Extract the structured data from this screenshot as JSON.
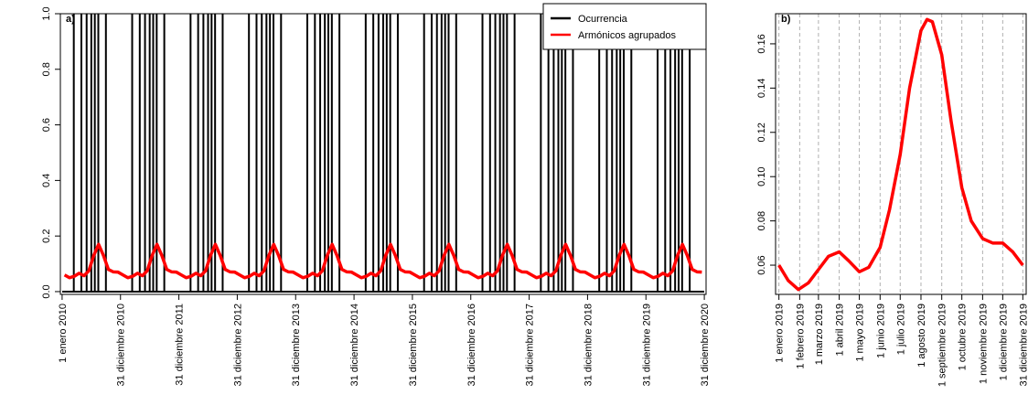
{
  "chart_data": [
    {
      "type": "line",
      "title": "a)",
      "xlim": [
        2009.97,
        2021.03
      ],
      "ylim": [
        -0.01,
        1.0
      ],
      "xticks": [
        {
          "value": 2010,
          "label": "1 enero 2010"
        },
        {
          "value": 2011,
          "label": "31 diciembre 2010"
        },
        {
          "value": 2012,
          "label": "31 diciembre 2011"
        },
        {
          "value": 2013,
          "label": "31 diciembre 2012"
        },
        {
          "value": 2014,
          "label": "31 diciembre 2013"
        },
        {
          "value": 2015,
          "label": "31 diciembre 2014"
        },
        {
          "value": 2016,
          "label": "31 diciembre 2015"
        },
        {
          "value": 2017,
          "label": "31 diciembre 2016"
        },
        {
          "value": 2018,
          "label": "31 diciembre 2017"
        },
        {
          "value": 2019,
          "label": "31 diciembre 2018"
        },
        {
          "value": 2020,
          "label": "31 diciembre 2019"
        },
        {
          "value": 2021,
          "label": "31 diciembre 2020"
        }
      ],
      "yticks": [
        {
          "value": 0,
          "label": "0.0"
        },
        0.2,
        0.4,
        0.6,
        0.8,
        {
          "value": 1,
          "label": "1.0"
        }
      ],
      "legend": "top right",
      "series": [
        {
          "name": "Ocurrencia",
          "color": "#000000",
          "type": "spike",
          "x": [
            2010.2,
            2010.33,
            2010.42,
            2010.5,
            2010.56,
            2010.62,
            2010.75,
            2011.2,
            2011.33,
            2011.42,
            2011.5,
            2011.56,
            2011.62,
            2011.75,
            2012.2,
            2012.33,
            2012.42,
            2012.5,
            2012.56,
            2012.62,
            2012.75,
            2013.2,
            2013.33,
            2013.42,
            2013.5,
            2013.56,
            2013.62,
            2013.75,
            2014.2,
            2014.33,
            2014.42,
            2014.5,
            2014.56,
            2014.62,
            2014.75,
            2015.2,
            2015.33,
            2015.42,
            2015.5,
            2015.56,
            2015.62,
            2015.75,
            2016.2,
            2016.33,
            2016.42,
            2016.5,
            2016.56,
            2016.62,
            2016.75,
            2017.2,
            2017.33,
            2017.42,
            2017.5,
            2017.56,
            2017.62,
            2017.75,
            2018.2,
            2018.33,
            2018.42,
            2018.5,
            2018.56,
            2018.62,
            2018.75,
            2019.2,
            2019.33,
            2019.42,
            2019.5,
            2019.56,
            2019.62,
            2019.75,
            2020.2,
            2020.33,
            2020.42,
            2020.5,
            2020.56,
            2020.62,
            2020.75
          ],
          "values": [
            1,
            1,
            1,
            1,
            1,
            1,
            1,
            1,
            1,
            1,
            1,
            1,
            1,
            1,
            1,
            1,
            1,
            1,
            1,
            1,
            1,
            1,
            1,
            1,
            1,
            1,
            1,
            1,
            1,
            1,
            1,
            1,
            1,
            1,
            1,
            1,
            1,
            1,
            1,
            1,
            1,
            1,
            1,
            1,
            1,
            1,
            1,
            1,
            1,
            1,
            1,
            1,
            1,
            1,
            1,
            1,
            1,
            1,
            1,
            1,
            1,
            1,
            1,
            1,
            1,
            1,
            1,
            1,
            1,
            1,
            1,
            1,
            1,
            1,
            1,
            1,
            1
          ]
        },
        {
          "name": "Armónicos agrupados",
          "color": "#ff0000",
          "type": "line",
          "x": [
            2010.042,
            2010.125,
            2010.208,
            2010.292,
            2010.375,
            2010.458,
            2010.542,
            2010.625,
            2010.708,
            2010.792,
            2010.875,
            2010.958,
            2011.042,
            2011.125,
            2011.208,
            2011.292,
            2011.375,
            2011.458,
            2011.542,
            2011.625,
            2011.708,
            2011.792,
            2011.875,
            2011.958,
            2012.042,
            2012.125,
            2012.208,
            2012.292,
            2012.375,
            2012.458,
            2012.542,
            2012.625,
            2012.708,
            2012.792,
            2012.875,
            2012.958,
            2013.042,
            2013.125,
            2013.208,
            2013.292,
            2013.375,
            2013.458,
            2013.542,
            2013.625,
            2013.708,
            2013.792,
            2013.875,
            2013.958,
            2014.042,
            2014.125,
            2014.208,
            2014.292,
            2014.375,
            2014.458,
            2014.542,
            2014.625,
            2014.708,
            2014.792,
            2014.875,
            2014.958,
            2015.042,
            2015.125,
            2015.208,
            2015.292,
            2015.375,
            2015.458,
            2015.542,
            2015.625,
            2015.708,
            2015.792,
            2015.875,
            2015.958,
            2016.042,
            2016.125,
            2016.208,
            2016.292,
            2016.375,
            2016.458,
            2016.542,
            2016.625,
            2016.708,
            2016.792,
            2016.875,
            2016.958,
            2017.042,
            2017.125,
            2017.208,
            2017.292,
            2017.375,
            2017.458,
            2017.542,
            2017.625,
            2017.708,
            2017.792,
            2017.875,
            2017.958,
            2018.042,
            2018.125,
            2018.208,
            2018.292,
            2018.375,
            2018.458,
            2018.542,
            2018.625,
            2018.708,
            2018.792,
            2018.875,
            2018.958,
            2019.042,
            2019.125,
            2019.208,
            2019.292,
            2019.375,
            2019.458,
            2019.542,
            2019.625,
            2019.708,
            2019.792,
            2019.875,
            2019.958,
            2020.042,
            2020.125,
            2020.208,
            2020.292,
            2020.375,
            2020.458,
            2020.542,
            2020.625,
            2020.708,
            2020.792,
            2020.875,
            2020.958
          ],
          "values": [
            0.06,
            0.05,
            0.055,
            0.066,
            0.057,
            0.075,
            0.13,
            0.17,
            0.13,
            0.08,
            0.071,
            0.07,
            0.06,
            0.05,
            0.055,
            0.066,
            0.057,
            0.075,
            0.13,
            0.17,
            0.13,
            0.08,
            0.071,
            0.07,
            0.06,
            0.05,
            0.055,
            0.066,
            0.057,
            0.075,
            0.13,
            0.17,
            0.13,
            0.08,
            0.071,
            0.07,
            0.06,
            0.05,
            0.055,
            0.066,
            0.057,
            0.075,
            0.13,
            0.17,
            0.13,
            0.08,
            0.071,
            0.07,
            0.06,
            0.05,
            0.055,
            0.066,
            0.057,
            0.075,
            0.13,
            0.17,
            0.13,
            0.08,
            0.071,
            0.07,
            0.06,
            0.05,
            0.055,
            0.066,
            0.057,
            0.075,
            0.13,
            0.17,
            0.13,
            0.08,
            0.071,
            0.07,
            0.06,
            0.05,
            0.055,
            0.066,
            0.057,
            0.075,
            0.13,
            0.17,
            0.13,
            0.08,
            0.071,
            0.07,
            0.06,
            0.05,
            0.055,
            0.066,
            0.057,
            0.075,
            0.13,
            0.17,
            0.13,
            0.08,
            0.071,
            0.07,
            0.06,
            0.05,
            0.055,
            0.066,
            0.057,
            0.075,
            0.13,
            0.17,
            0.13,
            0.08,
            0.071,
            0.07,
            0.06,
            0.05,
            0.055,
            0.066,
            0.057,
            0.075,
            0.13,
            0.17,
            0.13,
            0.08,
            0.071,
            0.07,
            0.06,
            0.05,
            0.055,
            0.066,
            0.057,
            0.075,
            0.13,
            0.17,
            0.13,
            0.08,
            0.071,
            0.07
          ]
        }
      ]
    },
    {
      "type": "line",
      "title": "b)",
      "xlim": [
        -4,
        370
      ],
      "ylim": [
        0.0468,
        0.1736
      ],
      "xgrid": true,
      "xticks": [
        {
          "value": 1,
          "label": "1 enero 2019"
        },
        {
          "value": 32,
          "label": "1 febrero 2019"
        },
        {
          "value": 60,
          "label": "1 marzo 2019"
        },
        {
          "value": 91,
          "label": "1 abril 2019"
        },
        {
          "value": 121,
          "label": "1 mayo 2019"
        },
        {
          "value": 152,
          "label": "1 junio 2019"
        },
        {
          "value": 182,
          "label": "1 julio 2019"
        },
        {
          "value": 213,
          "label": "1 agosto 2019"
        },
        {
          "value": 244,
          "label": "1 septiembre 2019"
        },
        {
          "value": 274,
          "label": "1 octubre 2019"
        },
        {
          "value": 305,
          "label": "1 noviembre 2019"
        },
        {
          "value": 335,
          "label": "1 diciembre 2019"
        },
        {
          "value": 365,
          "label": "31 diciembre 2019"
        }
      ],
      "yticks": [
        0.06,
        0.08,
        {
          "value": 0.1,
          "label": "0.10"
        },
        0.12,
        0.14,
        0.16
      ],
      "series": [
        {
          "color": "#ff0000",
          "type": "line",
          "x": [
            1,
            15,
            30,
            45,
            60,
            75,
            91,
            105,
            121,
            135,
            152,
            166,
            182,
            196,
            213,
            222,
            230,
            244,
            258,
            274,
            288,
            305,
            320,
            335,
            350,
            365
          ],
          "values": [
            0.06,
            0.053,
            0.049,
            0.052,
            0.058,
            0.064,
            0.066,
            0.062,
            0.057,
            0.059,
            0.068,
            0.085,
            0.11,
            0.14,
            0.166,
            0.171,
            0.17,
            0.155,
            0.125,
            0.095,
            0.08,
            0.072,
            0.07,
            0.07,
            0.066,
            0.06
          ]
        }
      ]
    }
  ]
}
